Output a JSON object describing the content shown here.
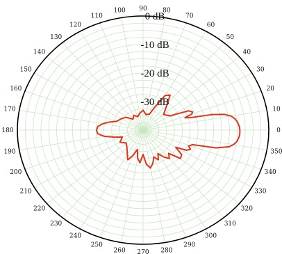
{
  "chart_data": {
    "type": "polar",
    "angle_unit": "degrees",
    "angle_zero": "right",
    "angle_direction": "counterclockwise",
    "angle_ticks": [
      0,
      10,
      20,
      30,
      40,
      50,
      60,
      70,
      80,
      90,
      100,
      110,
      120,
      130,
      140,
      150,
      160,
      170,
      180,
      190,
      200,
      210,
      220,
      230,
      240,
      250,
      260,
      270,
      280,
      290,
      300,
      310,
      320,
      330,
      340,
      350
    ],
    "radial_ticks": [
      0,
      -10,
      -20,
      -30
    ],
    "radial_tick_labels": [
      "0 dB",
      "-10 dB",
      "-20 dB",
      "-30 dB"
    ],
    "radial_range_db": [
      -40,
      0
    ],
    "grid": true,
    "grid_color": "#c8e6c0",
    "outline_color": "#000000",
    "series": [
      {
        "color": "#e0341c",
        "points": [
          [
            0,
            -9.2
          ],
          [
            2,
            -9.3
          ],
          [
            4,
            -9.6
          ],
          [
            6,
            -10.0
          ],
          [
            8,
            -10.6
          ],
          [
            10,
            -11.6
          ],
          [
            12,
            -13.5
          ],
          [
            14,
            -17.5
          ],
          [
            16,
            -24.0
          ],
          [
            18,
            -26.0
          ],
          [
            20,
            -23.5
          ],
          [
            22,
            -23.0
          ],
          [
            25,
            -24.0
          ],
          [
            28,
            -28.0
          ],
          [
            30,
            -30.0
          ],
          [
            40,
            -31.5
          ],
          [
            50,
            -28.0
          ],
          [
            55,
            -25.0
          ],
          [
            60,
            -26.0
          ],
          [
            65,
            -31.0
          ],
          [
            70,
            -34.0
          ],
          [
            80,
            -34.5
          ],
          [
            90,
            -33.0
          ],
          [
            100,
            -34.0
          ],
          [
            110,
            -35.0
          ],
          [
            120,
            -34.0
          ],
          [
            130,
            -35.0
          ],
          [
            140,
            -33.0
          ],
          [
            150,
            -32.0
          ],
          [
            160,
            -31.0
          ],
          [
            165,
            -29.0
          ],
          [
            170,
            -27.0
          ],
          [
            175,
            -25.5
          ],
          [
            180,
            -25.2
          ],
          [
            185,
            -25.5
          ],
          [
            190,
            -27.5
          ],
          [
            195,
            -30.5
          ],
          [
            200,
            -33.0
          ],
          [
            210,
            -31.5
          ],
          [
            220,
            -33.0
          ],
          [
            230,
            -32.0
          ],
          [
            240,
            -30.0
          ],
          [
            245,
            -28.5
          ],
          [
            250,
            -30.5
          ],
          [
            255,
            -33.0
          ],
          [
            260,
            -30.0
          ],
          [
            265,
            -28.5
          ],
          [
            270,
            -31.5
          ],
          [
            275,
            -28.0
          ],
          [
            280,
            -26.5
          ],
          [
            285,
            -28.0
          ],
          [
            290,
            -30.0
          ],
          [
            295,
            -28.5
          ],
          [
            300,
            -30.5
          ],
          [
            305,
            -28.5
          ],
          [
            310,
            -27.0
          ],
          [
            315,
            -28.5
          ],
          [
            320,
            -24.5
          ],
          [
            325,
            -25.0
          ],
          [
            330,
            -28.0
          ],
          [
            333,
            -24.5
          ],
          [
            336,
            -23.5
          ],
          [
            339,
            -24.5
          ],
          [
            342,
            -23.5
          ],
          [
            345,
            -16.0
          ],
          [
            348,
            -12.0
          ],
          [
            350,
            -10.8
          ],
          [
            352,
            -10.0
          ],
          [
            354,
            -9.6
          ],
          [
            356,
            -9.3
          ],
          [
            358,
            -9.2
          ]
        ]
      }
    ]
  }
}
